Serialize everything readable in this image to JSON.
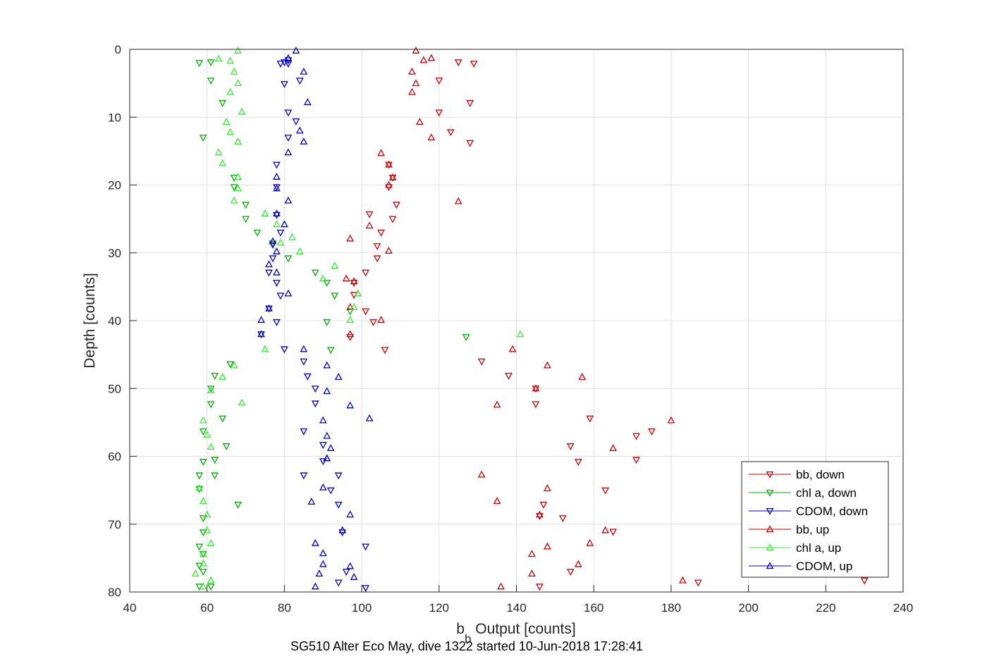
{
  "chart_data": {
    "type": "scatter",
    "title": "SG510 Alter Eco May, dive 1322 started 10-Jun-2018 17:28:41",
    "xlabel_main": "b",
    "xlabel_sub": "b",
    "xlabel_rest": " Output [counts]",
    "ylabel": "Depth [counts]",
    "xlim": [
      40,
      240
    ],
    "ylim": [
      0,
      80
    ],
    "y_reversed": true,
    "grid": true,
    "x_ticks": [
      40,
      60,
      80,
      100,
      120,
      140,
      160,
      180,
      200,
      220,
      240
    ],
    "y_ticks": [
      0,
      10,
      20,
      30,
      40,
      50,
      60,
      70,
      80
    ],
    "legend_position": "bottom-right",
    "series": [
      {
        "name": "bb, down",
        "color": "#cc0000",
        "marker": "triangle-down",
        "points": [
          [
            125,
            1.9
          ],
          [
            129,
            2.1
          ],
          [
            120,
            4.6
          ],
          [
            128,
            7.9
          ],
          [
            120,
            9.3
          ],
          [
            123,
            12.2
          ],
          [
            128,
            13.8
          ],
          [
            107,
            17
          ],
          [
            108,
            18.9
          ],
          [
            107,
            20.3
          ],
          [
            109,
            22.9
          ],
          [
            108,
            25
          ],
          [
            102,
            24.3
          ],
          [
            105,
            27
          ],
          [
            104,
            29
          ],
          [
            104,
            30.8
          ],
          [
            101,
            32.9
          ],
          [
            98,
            34.4
          ],
          [
            98,
            36.2
          ],
          [
            101,
            38.6
          ],
          [
            103,
            40.2
          ],
          [
            97,
            42.4
          ],
          [
            106,
            44.3
          ],
          [
            131,
            46
          ],
          [
            138,
            48.1
          ],
          [
            145,
            50
          ],
          [
            145,
            52.3
          ],
          [
            159,
            54.4
          ],
          [
            175,
            56.3
          ],
          [
            171,
            57
          ],
          [
            154,
            58.5
          ],
          [
            156,
            60.8
          ],
          [
            171,
            60.5
          ],
          [
            163,
            65
          ],
          [
            147,
            67.1
          ],
          [
            146,
            68.8
          ],
          [
            152,
            69.1
          ],
          [
            165,
            71.1
          ],
          [
            154,
            77
          ],
          [
            146,
            79.2
          ],
          [
            187,
            78.6
          ],
          [
            230,
            78.3
          ]
        ]
      },
      {
        "name": "chl a, down",
        "color": "#00b000",
        "marker": "triangle-down",
        "points": [
          [
            58,
            2
          ],
          [
            61,
            1.9
          ],
          [
            61,
            4.6
          ],
          [
            64,
            7.9
          ],
          [
            59,
            13
          ],
          [
            67,
            20.3
          ],
          [
            67,
            18.9
          ],
          [
            70,
            22.9
          ],
          [
            70,
            25
          ],
          [
            73,
            27
          ],
          [
            77,
            28.6
          ],
          [
            81,
            30.8
          ],
          [
            88,
            32.9
          ],
          [
            91,
            34.4
          ],
          [
            93,
            36.3
          ],
          [
            97,
            38.6
          ],
          [
            91,
            40.2
          ],
          [
            127,
            42.4
          ],
          [
            92,
            44.3
          ],
          [
            66,
            46.4
          ],
          [
            62,
            48.1
          ],
          [
            61,
            50
          ],
          [
            61,
            52.3
          ],
          [
            64,
            54.4
          ],
          [
            59,
            56.3
          ],
          [
            65,
            58.5
          ],
          [
            62,
            60.5
          ],
          [
            59,
            60.8
          ],
          [
            58,
            62.8
          ],
          [
            62,
            62.8
          ],
          [
            58,
            64.8
          ],
          [
            68,
            67.1
          ],
          [
            59,
            69.1
          ],
          [
            59,
            71.2
          ],
          [
            58,
            73.3
          ],
          [
            59,
            74.4
          ],
          [
            58,
            76.1
          ],
          [
            59,
            77
          ],
          [
            58,
            79.2
          ],
          [
            61,
            79.2
          ]
        ]
      },
      {
        "name": "CDOM, down",
        "color": "#0000cc",
        "marker": "triangle-down",
        "points": [
          [
            81,
            1.6
          ],
          [
            81,
            2.1
          ],
          [
            80,
            1.9
          ],
          [
            79,
            2.1
          ],
          [
            84,
            4.6
          ],
          [
            80,
            5.1
          ],
          [
            81,
            9.3
          ],
          [
            83,
            10.6
          ],
          [
            81,
            13
          ],
          [
            78,
            17
          ],
          [
            78,
            20.3
          ],
          [
            78,
            24.4
          ],
          [
            79,
            27
          ],
          [
            77,
            28.8
          ],
          [
            77,
            30.8
          ],
          [
            76,
            32.9
          ],
          [
            78,
            34.4
          ],
          [
            79,
            36.3
          ],
          [
            76,
            38.2
          ],
          [
            78,
            40.2
          ],
          [
            74,
            42
          ],
          [
            80,
            44.2
          ],
          [
            85,
            46
          ],
          [
            86,
            48.2
          ],
          [
            88,
            50
          ],
          [
            88,
            52.2
          ],
          [
            85,
            56.3
          ],
          [
            90,
            58.3
          ],
          [
            90,
            60.7
          ],
          [
            85,
            62.8
          ],
          [
            94,
            62.8
          ],
          [
            92,
            65
          ],
          [
            94,
            67.1
          ],
          [
            95,
            71.2
          ],
          [
            101,
            73.3
          ],
          [
            96,
            77
          ],
          [
            94,
            78.6
          ],
          [
            101,
            79.4
          ]
        ]
      },
      {
        "name": "bb, up",
        "color": "#cc0000",
        "marker": "triangle-up",
        "points": [
          [
            114,
            0.2
          ],
          [
            118,
            1.3
          ],
          [
            116,
            1.6
          ],
          [
            113,
            3.3
          ],
          [
            114,
            5
          ],
          [
            113,
            6.3
          ],
          [
            115,
            10.7
          ],
          [
            118,
            13
          ],
          [
            125,
            22.4
          ],
          [
            105,
            15.3
          ],
          [
            107,
            17
          ],
          [
            108,
            18.9
          ],
          [
            107,
            20
          ],
          [
            102,
            26
          ],
          [
            97,
            27.9
          ],
          [
            107,
            29.7
          ],
          [
            96,
            33.8
          ],
          [
            98,
            34.2
          ],
          [
            99,
            36
          ],
          [
            97,
            38
          ],
          [
            105,
            39.9
          ],
          [
            97,
            42
          ],
          [
            139,
            44.2
          ],
          [
            148,
            46.6
          ],
          [
            157,
            48.3
          ],
          [
            145,
            50
          ],
          [
            135,
            52.4
          ],
          [
            180,
            54.7
          ],
          [
            165,
            58.8
          ],
          [
            131,
            62.7
          ],
          [
            148,
            64.7
          ],
          [
            135,
            66.6
          ],
          [
            146,
            68.6
          ],
          [
            163,
            70.9
          ],
          [
            159,
            72.8
          ],
          [
            148,
            73.3
          ],
          [
            144,
            74.4
          ],
          [
            156,
            75.9
          ],
          [
            144,
            77.3
          ],
          [
            183,
            78.3
          ],
          [
            136,
            79.2
          ]
        ]
      },
      {
        "name": "chl a, up",
        "color": "#33ee33",
        "marker": "triangle-up",
        "points": [
          [
            68,
            0.2
          ],
          [
            63,
            1.4
          ],
          [
            66,
            1.7
          ],
          [
            67,
            3.3
          ],
          [
            68,
            5
          ],
          [
            66,
            6.3
          ],
          [
            69,
            9.2
          ],
          [
            65,
            10.7
          ],
          [
            66,
            12.2
          ],
          [
            68,
            13.6
          ],
          [
            63,
            15.2
          ],
          [
            64,
            16.8
          ],
          [
            68,
            18.8
          ],
          [
            68,
            20.5
          ],
          [
            67,
            22.3
          ],
          [
            75,
            24.2
          ],
          [
            78,
            25.8
          ],
          [
            79,
            28.5
          ],
          [
            82,
            27.7
          ],
          [
            84,
            29.8
          ],
          [
            93,
            31.9
          ],
          [
            90,
            33.8
          ],
          [
            99,
            36
          ],
          [
            98,
            38
          ],
          [
            97,
            39.9
          ],
          [
            141,
            42
          ],
          [
            75,
            44.2
          ],
          [
            67,
            46.6
          ],
          [
            64,
            48.3
          ],
          [
            61,
            50.3
          ],
          [
            69,
            52.1
          ],
          [
            59,
            54.7
          ],
          [
            60,
            56.8
          ],
          [
            61,
            58.6
          ],
          [
            58,
            64.7
          ],
          [
            59,
            66.6
          ],
          [
            60,
            68.6
          ],
          [
            60,
            70.9
          ],
          [
            61,
            72.8
          ],
          [
            59,
            74.4
          ],
          [
            59,
            75.8
          ],
          [
            57,
            77.3
          ],
          [
            61,
            78.3
          ],
          [
            59,
            79.2
          ]
        ]
      },
      {
        "name": "CDOM, up",
        "color": "#0000cc",
        "marker": "triangle-up",
        "points": [
          [
            83,
            0.2
          ],
          [
            81,
            1.3
          ],
          [
            85,
            3.3
          ],
          [
            86,
            7.8
          ],
          [
            84,
            12
          ],
          [
            85,
            13.6
          ],
          [
            81,
            15.2
          ],
          [
            78,
            18.8
          ],
          [
            78,
            20.5
          ],
          [
            81,
            22.3
          ],
          [
            78,
            24.2
          ],
          [
            80,
            25.8
          ],
          [
            77,
            28.3
          ],
          [
            78,
            29.8
          ],
          [
            76,
            31.7
          ],
          [
            78,
            32.9
          ],
          [
            81,
            36
          ],
          [
            76,
            38.2
          ],
          [
            74,
            39.9
          ],
          [
            74,
            42
          ],
          [
            85,
            44.2
          ],
          [
            91,
            46.6
          ],
          [
            94,
            48.3
          ],
          [
            91,
            50.4
          ],
          [
            97,
            52.5
          ],
          [
            102,
            54.4
          ],
          [
            90,
            54.7
          ],
          [
            91,
            57
          ],
          [
            92,
            58.8
          ],
          [
            91,
            60.3
          ],
          [
            90,
            64.6
          ],
          [
            91,
            60.3
          ],
          [
            87,
            66.7
          ],
          [
            97,
            68.6
          ],
          [
            95,
            70.9
          ],
          [
            88,
            72.8
          ],
          [
            90,
            74.3
          ],
          [
            90,
            75.9
          ],
          [
            97,
            76.2
          ],
          [
            98,
            77.8
          ],
          [
            89,
            77.3
          ],
          [
            88,
            79.2
          ]
        ]
      }
    ]
  }
}
